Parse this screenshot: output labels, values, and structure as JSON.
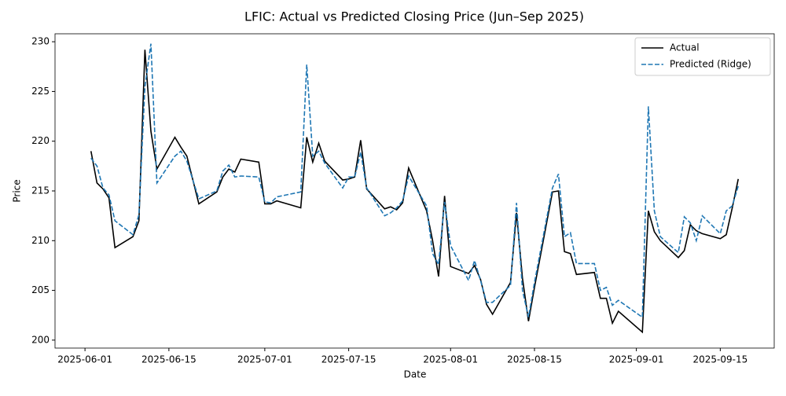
{
  "chart_data": {
    "type": "line",
    "title": "LFIC: Actual vs Predicted Closing Price (Jun–Sep 2025)",
    "xlabel": "Date",
    "ylabel": "Price",
    "x": [
      "2025-06-02",
      "2025-06-03",
      "2025-06-04",
      "2025-06-05",
      "2025-06-06",
      "2025-06-09",
      "2025-06-10",
      "2025-06-11",
      "2025-06-12",
      "2025-06-13",
      "2025-06-16",
      "2025-06-17",
      "2025-06-18",
      "2025-06-20",
      "2025-06-23",
      "2025-06-24",
      "2025-06-25",
      "2025-06-26",
      "2025-06-27",
      "2025-06-30",
      "2025-07-01",
      "2025-07-02",
      "2025-07-03",
      "2025-07-07",
      "2025-07-08",
      "2025-07-09",
      "2025-07-10",
      "2025-07-11",
      "2025-07-14",
      "2025-07-15",
      "2025-07-16",
      "2025-07-17",
      "2025-07-18",
      "2025-07-21",
      "2025-07-22",
      "2025-07-23",
      "2025-07-24",
      "2025-07-25",
      "2025-07-28",
      "2025-07-29",
      "2025-07-30",
      "2025-07-31",
      "2025-08-01",
      "2025-08-04",
      "2025-08-05",
      "2025-08-06",
      "2025-08-07",
      "2025-08-08",
      "2025-08-11",
      "2025-08-12",
      "2025-08-13",
      "2025-08-14",
      "2025-08-15",
      "2025-08-18",
      "2025-08-19",
      "2025-08-20",
      "2025-08-21",
      "2025-08-22",
      "2025-08-25",
      "2025-08-26",
      "2025-08-27",
      "2025-08-28",
      "2025-08-29",
      "2025-09-02",
      "2025-09-03",
      "2025-09-04",
      "2025-09-05",
      "2025-09-08",
      "2025-09-09",
      "2025-09-10",
      "2025-09-11",
      "2025-09-12",
      "2025-09-15",
      "2025-09-16",
      "2025-09-17",
      "2025-09-18"
    ],
    "series": [
      {
        "name": "Actual",
        "color": "#000000",
        "dash": "solid",
        "values": [
          219.0,
          215.8,
          215.2,
          214.3,
          209.3,
          210.4,
          212.0,
          229.2,
          221.0,
          217.2,
          220.4,
          219.4,
          218.5,
          213.7,
          214.9,
          216.4,
          217.2,
          216.9,
          218.2,
          217.9,
          213.7,
          213.7,
          214.0,
          213.3,
          220.4,
          217.9,
          219.8,
          218.0,
          216.1,
          216.2,
          216.4,
          220.1,
          215.2,
          213.2,
          213.4,
          213.1,
          213.8,
          217.3,
          213.0,
          210.0,
          206.4,
          214.5,
          207.4,
          206.7,
          207.5,
          206.1,
          203.6,
          202.6,
          205.8,
          212.8,
          206.2,
          201.9,
          205.3,
          214.9,
          215.0,
          208.9,
          208.7,
          206.6,
          206.8,
          204.2,
          204.2,
          201.7,
          202.9,
          200.8,
          213.0,
          210.9,
          210.0,
          208.3,
          209.0,
          211.6,
          211.0,
          210.7,
          210.2,
          210.6,
          213.3,
          216.2
        ]
      },
      {
        "name": "Predicted (Ridge)",
        "color": "#1f77b4",
        "dash": "dashed",
        "values": [
          218.3,
          217.5,
          215.3,
          214.6,
          212.0,
          210.6,
          212.6,
          225.5,
          229.8,
          215.8,
          218.5,
          219.0,
          218.0,
          214.2,
          215.0,
          217.0,
          217.6,
          216.4,
          216.5,
          216.4,
          213.9,
          213.8,
          214.4,
          214.9,
          227.7,
          218.5,
          219.0,
          217.8,
          215.3,
          216.4,
          216.4,
          218.9,
          215.3,
          212.5,
          212.8,
          213.3,
          214.0,
          216.5,
          213.5,
          208.7,
          207.6,
          213.9,
          209.5,
          206.0,
          208.0,
          206.0,
          203.8,
          203.8,
          205.5,
          213.8,
          205.0,
          202.3,
          205.8,
          215.3,
          216.7,
          210.4,
          210.8,
          207.7,
          207.7,
          205.0,
          205.3,
          203.5,
          204.0,
          202.3,
          223.5,
          213.0,
          210.4,
          208.8,
          212.4,
          211.8,
          210.0,
          212.5,
          210.7,
          213.0,
          213.5,
          215.5
        ]
      }
    ],
    "xlim": [
      "2025-05-27",
      "2025-09-24"
    ],
    "xticks": [
      "2025-06-01",
      "2025-06-15",
      "2025-07-01",
      "2025-07-15",
      "2025-08-01",
      "2025-08-15",
      "2025-09-01",
      "2025-09-15"
    ],
    "ylim": [
      199.2,
      230.8
    ],
    "yticks": [
      200,
      205,
      210,
      215,
      220,
      225,
      230
    ],
    "grid": false,
    "legend": "upper right"
  }
}
